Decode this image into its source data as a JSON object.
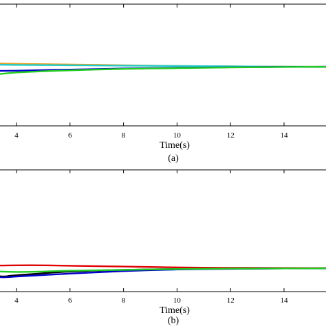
{
  "chart_data": [
    {
      "type": "line",
      "panel_caption": "(a)",
      "xlabel": "Time(s)",
      "ylabel": "",
      "title": "",
      "xlim": [
        2.5,
        16.5
      ],
      "ylim": [
        -1,
        1
      ],
      "xticks": [
        4,
        6,
        8,
        10,
        12,
        14
      ],
      "grid": false,
      "colors": {
        "axis": "#000000",
        "red": "#e00000",
        "blue": "#0000c8",
        "green": "#22cc22",
        "cyan": "#22cccc",
        "black": "#000000",
        "orange": "#e8a020"
      },
      "series": [
        {
          "color": "#e8a020",
          "x": [
            2.5,
            3,
            4,
            6,
            8,
            10,
            12,
            14,
            16.5
          ],
          "values": [
            0.07,
            0.05,
            0.04,
            0.03,
            0.02,
            0.01,
            0.005,
            0.0,
            0.0
          ]
        },
        {
          "color": "#22cccc",
          "x": [
            2.5,
            3,
            4,
            6,
            8,
            10,
            12,
            14,
            16.5
          ],
          "values": [
            0.04,
            0.03,
            0.025,
            0.02,
            0.015,
            0.01,
            0.005,
            0.0,
            0.0
          ]
        },
        {
          "color": "#0000c8",
          "x": [
            2.5,
            3,
            4,
            6,
            8,
            10,
            12,
            14,
            16.5
          ],
          "values": [
            -0.06,
            -0.06,
            -0.055,
            -0.04,
            -0.025,
            -0.015,
            -0.008,
            -0.003,
            0.0
          ]
        },
        {
          "color": "#22cc22",
          "x": [
            2.5,
            3,
            4,
            6,
            8,
            10,
            12,
            14,
            16.5
          ],
          "values": [
            -0.16,
            -0.12,
            -0.08,
            -0.05,
            -0.03,
            -0.02,
            -0.01,
            -0.004,
            0.0
          ]
        }
      ]
    },
    {
      "type": "line",
      "panel_caption": "(b)",
      "xlabel": "Time(s)",
      "ylabel": "",
      "title": "",
      "xlim": [
        2.5,
        16.5
      ],
      "ylim": [
        -1,
        1
      ],
      "xticks": [
        4,
        6,
        8,
        10,
        12,
        14
      ],
      "grid": false,
      "series": [
        {
          "color": "#e00000",
          "x": [
            2.5,
            3,
            4,
            5,
            6,
            8,
            10,
            12,
            14,
            16.5
          ],
          "values": [
            0.04,
            0.06,
            0.07,
            0.07,
            0.06,
            0.04,
            0.02,
            0.01,
            0.005,
            0.0
          ]
        },
        {
          "color": "#000000",
          "x": [
            2.5,
            3,
            3.5,
            4,
            6,
            8,
            10,
            12,
            14,
            16.5
          ],
          "values": [
            -0.1,
            -0.16,
            -0.2,
            -0.17,
            -0.08,
            -0.04,
            -0.02,
            -0.01,
            -0.005,
            0.0
          ]
        },
        {
          "color": "#0000c8",
          "x": [
            2.5,
            3,
            3.5,
            4,
            6,
            8,
            10,
            12,
            14,
            16.5
          ],
          "values": [
            -0.15,
            -0.19,
            -0.22,
            -0.2,
            -0.13,
            -0.07,
            -0.03,
            -0.015,
            -0.005,
            0.0
          ]
        },
        {
          "color": "#22cc22",
          "x": [
            2.5,
            3,
            4,
            5,
            6,
            8,
            10,
            12,
            14,
            16.5
          ],
          "values": [
            -0.04,
            -0.07,
            -0.09,
            -0.08,
            -0.06,
            -0.04,
            -0.02,
            -0.01,
            -0.005,
            0.0
          ]
        }
      ]
    }
  ]
}
